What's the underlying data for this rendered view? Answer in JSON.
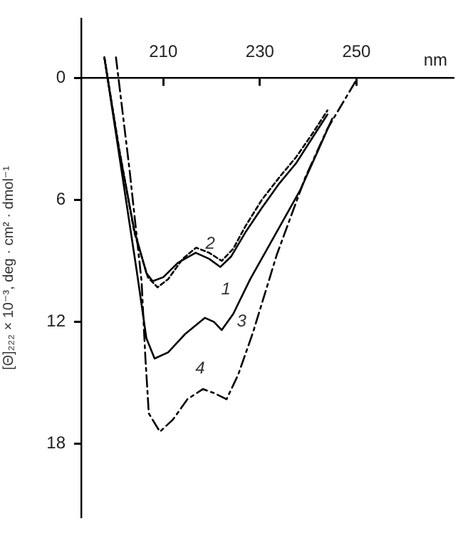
{
  "chart_data": {
    "type": "line",
    "xlabel": "nm",
    "ylabel": "[Θ]₂₂₂ × 10⁻³, deg · cm² · dmol⁻¹",
    "xlim": [
      193,
      270
    ],
    "xticks": [
      210,
      230,
      250
    ],
    "ylim": [
      21.6,
      -2.9
    ],
    "yticks": [
      0,
      6,
      12,
      18
    ],
    "grid": false,
    "legend": false,
    "marker": "none",
    "series": [
      {
        "name": "1",
        "color": "#000000",
        "line_style": "solid",
        "x": [
          197.8,
          200.8,
          204,
          206.5,
          207.8,
          210,
          213,
          216.7,
          219.5,
          221.8,
          224,
          227,
          230.4,
          234,
          237.5,
          241,
          244
        ],
        "values": [
          -1.0,
          3.5,
          7.5,
          9.6,
          10.0,
          9.8,
          9.1,
          8.6,
          8.9,
          9.3,
          8.8,
          7.6,
          6.4,
          5.2,
          4.2,
          2.9,
          1.8
        ]
      },
      {
        "name": "2",
        "color": "#000000",
        "line_style": "dotted",
        "x": [
          197.8,
          200.8,
          204,
          206.8,
          208.8,
          211,
          214,
          216.8,
          219.5,
          222.1,
          224.5,
          227,
          230.4,
          234,
          237.5,
          241,
          244
        ],
        "values": [
          -1.0,
          3.4,
          7.6,
          9.8,
          10.3,
          9.9,
          8.9,
          8.35,
          8.6,
          9.0,
          8.4,
          7.3,
          6.0,
          4.9,
          3.9,
          2.7,
          1.6
        ]
      },
      {
        "name": "3",
        "color": "#000000",
        "line_style": "solid",
        "x": [
          197.8,
          201,
          204.5,
          206.5,
          208.2,
          211,
          214.5,
          218.6,
          220.5,
          222.1,
          224.5,
          228,
          232.5,
          238.4,
          242,
          245
        ],
        "values": [
          -1.0,
          4,
          9.5,
          12.8,
          13.8,
          13.5,
          12.6,
          11.8,
          12.0,
          12.4,
          11.6,
          9.9,
          8.0,
          5.5,
          3.6,
          2.0
        ]
      },
      {
        "name": "4",
        "color": "#000000",
        "line_style": "dashed",
        "x": [
          200.2,
          203,
          205.5,
          206.3,
          207,
          209.3,
          212,
          215,
          218.2,
          220.5,
          223.1,
          225.5,
          228.6,
          233.5,
          239.4,
          244,
          250
        ],
        "values": [
          -1.0,
          4.5,
          10,
          13.8,
          16.5,
          17.4,
          16.8,
          15.8,
          15.3,
          15.5,
          15.8,
          14.6,
          12.5,
          8.7,
          4.9,
          2.5,
          0.1
        ]
      }
    ]
  }
}
